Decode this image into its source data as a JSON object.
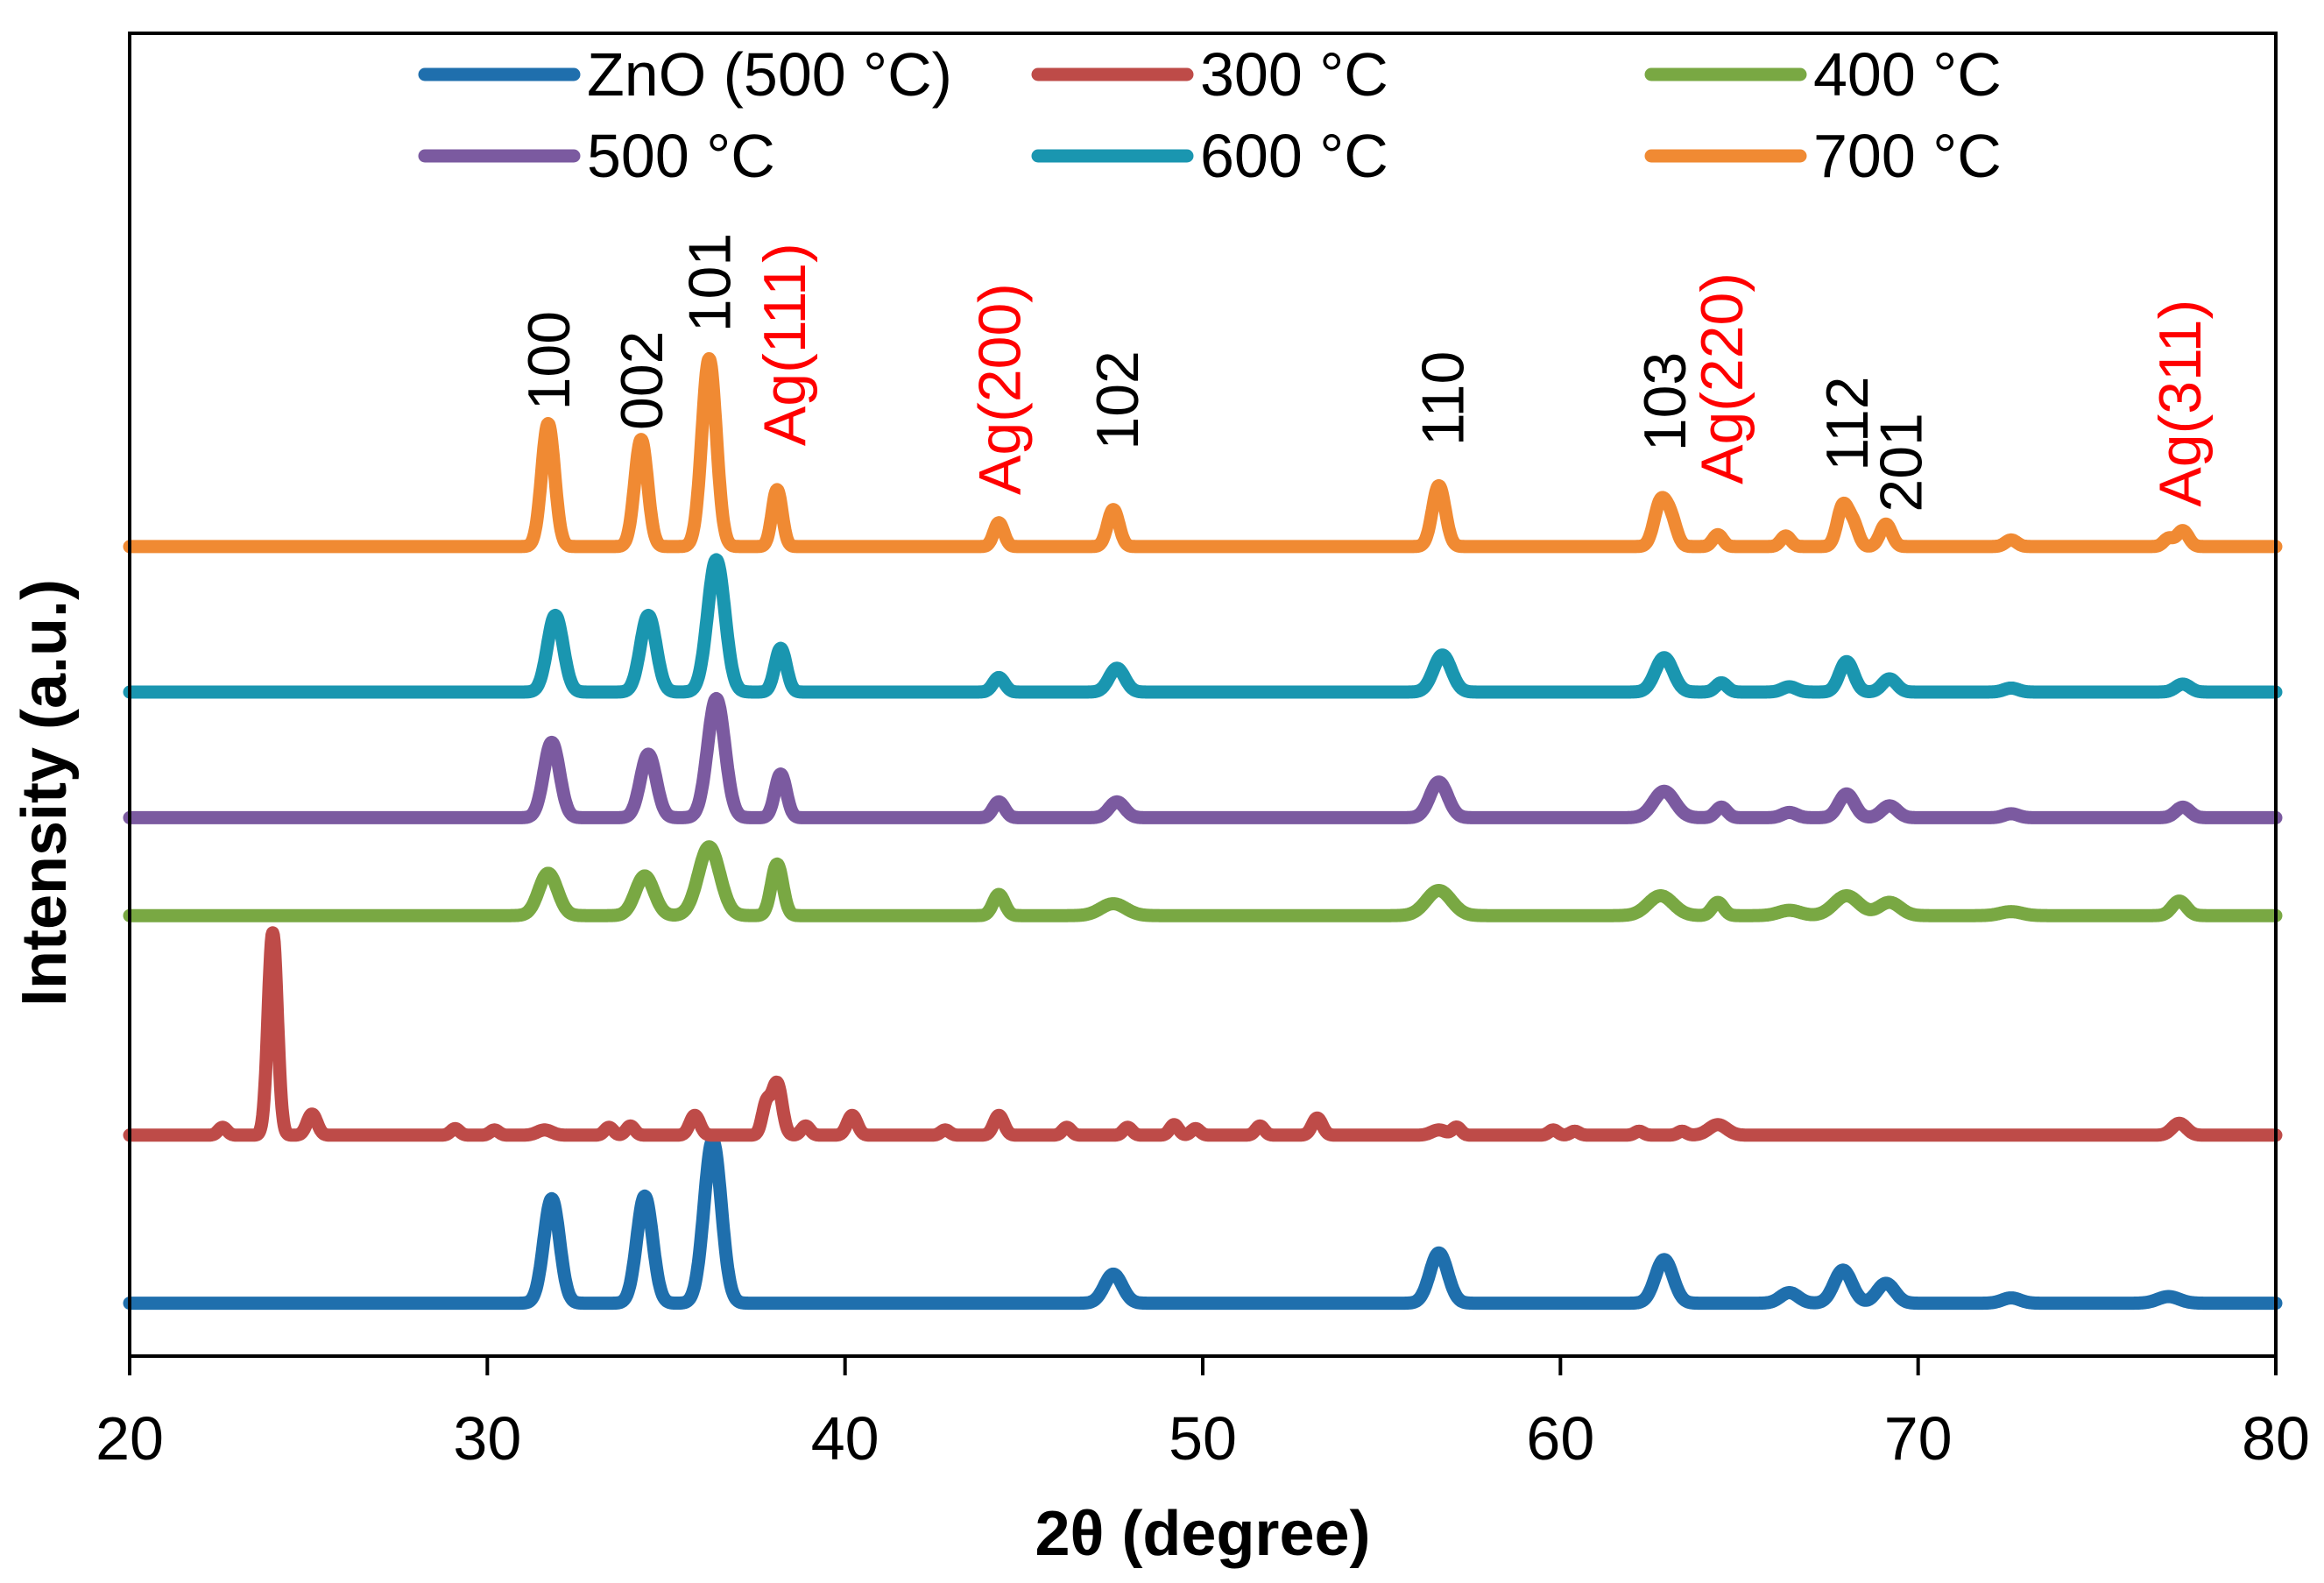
{
  "chart_data": {
    "type": "line",
    "title": "",
    "xlabel": "2θ (degree)",
    "ylabel": "Intensity (a.u.)",
    "xlim": [
      20,
      80
    ],
    "ylim": [
      0,
      100
    ],
    "x_ticks": [
      20,
      30,
      40,
      50,
      60,
      70,
      80
    ],
    "x_tick_labels": [
      "20",
      "30",
      "40",
      "50",
      "60",
      "70",
      "80"
    ],
    "y_ticks_shown": false,
    "legend_position": "top",
    "series": [
      {
        "name": "ZnO (500 °C)",
        "color": "#1f6fad",
        "baseline": 4,
        "peaks": [
          {
            "x": 31.8,
            "h": 7.9,
            "w": 0.22
          },
          {
            "x": 34.4,
            "h": 8.1,
            "w": 0.22
          },
          {
            "x": 36.3,
            "h": 12.3,
            "w": 0.24
          },
          {
            "x": 47.5,
            "h": 2.2,
            "w": 0.25
          },
          {
            "x": 56.6,
            "h": 3.8,
            "w": 0.25
          },
          {
            "x": 62.9,
            "h": 3.3,
            "w": 0.25
          },
          {
            "x": 66.4,
            "h": 0.8,
            "w": 0.25
          },
          {
            "x": 67.9,
            "h": 2.5,
            "w": 0.25
          },
          {
            "x": 69.1,
            "h": 1.5,
            "w": 0.25
          },
          {
            "x": 72.6,
            "h": 0.4,
            "w": 0.25
          },
          {
            "x": 77.0,
            "h": 0.5,
            "w": 0.3
          }
        ]
      },
      {
        "name": "300 °C",
        "color": "#be4b48",
        "baseline": 16.7,
        "peaks": [
          {
            "x": 22.6,
            "h": 0.6,
            "w": 0.12
          },
          {
            "x": 24.0,
            "h": 15.3,
            "w": 0.13
          },
          {
            "x": 25.1,
            "h": 1.6,
            "w": 0.14
          },
          {
            "x": 29.1,
            "h": 0.5,
            "w": 0.12
          },
          {
            "x": 30.2,
            "h": 0.4,
            "w": 0.12
          },
          {
            "x": 31.6,
            "h": 0.4,
            "w": 0.2
          },
          {
            "x": 33.4,
            "h": 0.6,
            "w": 0.12
          },
          {
            "x": 34.0,
            "h": 0.7,
            "w": 0.12
          },
          {
            "x": 35.8,
            "h": 1.5,
            "w": 0.14
          },
          {
            "x": 37.8,
            "h": 2.3,
            "w": 0.12
          },
          {
            "x": 38.1,
            "h": 3.9,
            "w": 0.14
          },
          {
            "x": 38.9,
            "h": 0.7,
            "w": 0.12
          },
          {
            "x": 40.2,
            "h": 1.5,
            "w": 0.14
          },
          {
            "x": 42.8,
            "h": 0.4,
            "w": 0.12
          },
          {
            "x": 44.3,
            "h": 1.5,
            "w": 0.14
          },
          {
            "x": 46.2,
            "h": 0.6,
            "w": 0.12
          },
          {
            "x": 47.9,
            "h": 0.6,
            "w": 0.12
          },
          {
            "x": 49.2,
            "h": 0.8,
            "w": 0.12
          },
          {
            "x": 49.8,
            "h": 0.5,
            "w": 0.12
          },
          {
            "x": 51.6,
            "h": 0.7,
            "w": 0.12
          },
          {
            "x": 53.2,
            "h": 1.3,
            "w": 0.14
          },
          {
            "x": 56.6,
            "h": 0.4,
            "w": 0.2
          },
          {
            "x": 57.1,
            "h": 0.6,
            "w": 0.12
          },
          {
            "x": 59.8,
            "h": 0.4,
            "w": 0.12
          },
          {
            "x": 60.4,
            "h": 0.3,
            "w": 0.12
          },
          {
            "x": 62.2,
            "h": 0.3,
            "w": 0.12
          },
          {
            "x": 63.4,
            "h": 0.3,
            "w": 0.12
          },
          {
            "x": 64.4,
            "h": 0.8,
            "w": 0.25
          },
          {
            "x": 77.3,
            "h": 0.9,
            "w": 0.2
          }
        ]
      },
      {
        "name": "400 °C",
        "color": "#79a843",
        "baseline": 33.3,
        "peaks": [
          {
            "x": 31.7,
            "h": 3.2,
            "w": 0.26
          },
          {
            "x": 34.4,
            "h": 3.0,
            "w": 0.26
          },
          {
            "x": 36.2,
            "h": 5.2,
            "w": 0.3
          },
          {
            "x": 38.1,
            "h": 3.9,
            "w": 0.16
          },
          {
            "x": 44.3,
            "h": 1.6,
            "w": 0.16
          },
          {
            "x": 47.5,
            "h": 0.9,
            "w": 0.35
          },
          {
            "x": 56.6,
            "h": 1.9,
            "w": 0.35
          },
          {
            "x": 62.8,
            "h": 1.5,
            "w": 0.35
          },
          {
            "x": 64.4,
            "h": 1.0,
            "w": 0.16
          },
          {
            "x": 66.4,
            "h": 0.4,
            "w": 0.3
          },
          {
            "x": 68.0,
            "h": 1.5,
            "w": 0.35
          },
          {
            "x": 69.2,
            "h": 1.0,
            "w": 0.3
          },
          {
            "x": 72.6,
            "h": 0.3,
            "w": 0.3
          },
          {
            "x": 77.3,
            "h": 1.1,
            "w": 0.2
          }
        ]
      },
      {
        "name": "500 °C",
        "color": "#7b5aa0",
        "baseline": 40.7,
        "peaks": [
          {
            "x": 31.8,
            "h": 5.7,
            "w": 0.22
          },
          {
            "x": 34.5,
            "h": 4.8,
            "w": 0.22
          },
          {
            "x": 36.4,
            "h": 9.0,
            "w": 0.24
          },
          {
            "x": 38.2,
            "h": 3.3,
            "w": 0.16
          },
          {
            "x": 44.3,
            "h": 1.2,
            "w": 0.16
          },
          {
            "x": 47.6,
            "h": 1.2,
            "w": 0.22
          },
          {
            "x": 56.6,
            "h": 2.7,
            "w": 0.25
          },
          {
            "x": 62.9,
            "h": 2.0,
            "w": 0.3
          },
          {
            "x": 64.5,
            "h": 0.8,
            "w": 0.16
          },
          {
            "x": 66.4,
            "h": 0.4,
            "w": 0.2
          },
          {
            "x": 68.0,
            "h": 1.8,
            "w": 0.22
          },
          {
            "x": 69.2,
            "h": 0.9,
            "w": 0.22
          },
          {
            "x": 72.6,
            "h": 0.3,
            "w": 0.2
          },
          {
            "x": 77.4,
            "h": 0.8,
            "w": 0.2
          }
        ]
      },
      {
        "name": "600 °C",
        "color": "#1a96b0",
        "baseline": 50.2,
        "peaks": [
          {
            "x": 31.9,
            "h": 5.8,
            "w": 0.22
          },
          {
            "x": 34.5,
            "h": 5.8,
            "w": 0.22
          },
          {
            "x": 36.4,
            "h": 10.0,
            "w": 0.24
          },
          {
            "x": 38.2,
            "h": 3.3,
            "w": 0.16
          },
          {
            "x": 44.3,
            "h": 1.1,
            "w": 0.16
          },
          {
            "x": 47.6,
            "h": 1.8,
            "w": 0.22
          },
          {
            "x": 56.7,
            "h": 2.8,
            "w": 0.25
          },
          {
            "x": 62.9,
            "h": 2.6,
            "w": 0.25
          },
          {
            "x": 64.5,
            "h": 0.7,
            "w": 0.16
          },
          {
            "x": 66.4,
            "h": 0.4,
            "w": 0.2
          },
          {
            "x": 68.0,
            "h": 2.3,
            "w": 0.2
          },
          {
            "x": 69.2,
            "h": 1.0,
            "w": 0.2
          },
          {
            "x": 72.6,
            "h": 0.3,
            "w": 0.2
          },
          {
            "x": 77.4,
            "h": 0.6,
            "w": 0.2
          }
        ]
      },
      {
        "name": "700 °C",
        "color": "#f08a33",
        "baseline": 61.2,
        "peaks": [
          {
            "x": 31.7,
            "h": 9.3,
            "w": 0.18
          },
          {
            "x": 34.3,
            "h": 8.1,
            "w": 0.18
          },
          {
            "x": 36.2,
            "h": 14.2,
            "w": 0.2
          },
          {
            "x": 38.1,
            "h": 4.3,
            "w": 0.14
          },
          {
            "x": 44.3,
            "h": 1.8,
            "w": 0.14
          },
          {
            "x": 47.5,
            "h": 2.8,
            "w": 0.16
          },
          {
            "x": 56.6,
            "h": 4.6,
            "w": 0.18
          },
          {
            "x": 62.8,
            "h": 3.3,
            "w": 0.18
          },
          {
            "x": 63.1,
            "h": 1.8,
            "w": 0.16
          },
          {
            "x": 64.4,
            "h": 0.9,
            "w": 0.14
          },
          {
            "x": 66.3,
            "h": 0.8,
            "w": 0.14
          },
          {
            "x": 67.9,
            "h": 3.1,
            "w": 0.16
          },
          {
            "x": 68.2,
            "h": 1.5,
            "w": 0.14
          },
          {
            "x": 69.1,
            "h": 1.7,
            "w": 0.16
          },
          {
            "x": 72.6,
            "h": 0.5,
            "w": 0.16
          },
          {
            "x": 77.0,
            "h": 0.6,
            "w": 0.14
          },
          {
            "x": 77.4,
            "h": 1.2,
            "w": 0.16
          }
        ]
      }
    ],
    "annotations": [
      {
        "text": "100",
        "x": 31.7,
        "y": 71.5,
        "color": "#000000"
      },
      {
        "text": "002",
        "x": 34.3,
        "y": 70.0,
        "color": "#000000"
      },
      {
        "text": "101",
        "x": 36.2,
        "y": 77.4,
        "color": "#000000"
      },
      {
        "text": "Ag(111)",
        "x": 38.3,
        "y": 68.8,
        "color": "#ff0000"
      },
      {
        "text": "Ag(200)",
        "x": 44.3,
        "y": 65.1,
        "color": "#ff0000"
      },
      {
        "text": "102",
        "x": 47.6,
        "y": 68.5,
        "color": "#000000"
      },
      {
        "text": "110",
        "x": 56.7,
        "y": 68.8,
        "color": "#000000"
      },
      {
        "text": "103",
        "x": 62.9,
        "y": 68.4,
        "color": "#000000"
      },
      {
        "text": "Ag(220)",
        "x": 64.5,
        "y": 65.9,
        "color": "#ff0000"
      },
      {
        "text": "112",
        "x": 68.0,
        "y": 66.9,
        "color": "#000000"
      },
      {
        "text": "201",
        "x": 69.5,
        "y": 63.8,
        "color": "#000000"
      },
      {
        "text": "Ag(311)",
        "x": 77.3,
        "y": 64.2,
        "color": "#ff0000"
      }
    ]
  }
}
